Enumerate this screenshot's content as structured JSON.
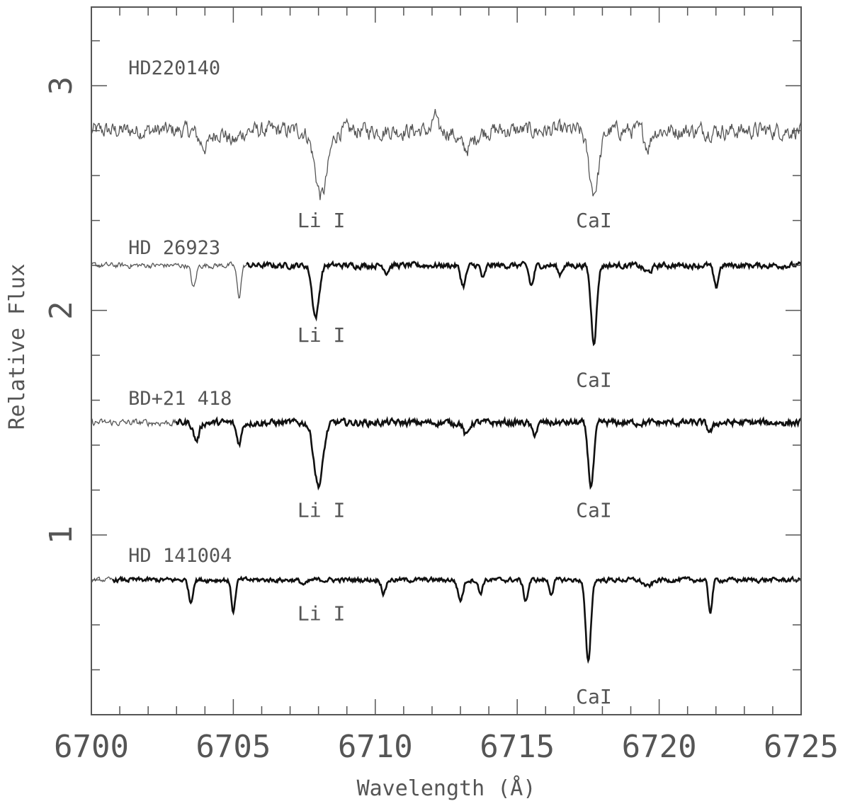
{
  "chart_data": {
    "type": "line",
    "xlabel": "Wavelength (Å)",
    "ylabel": "Relative Flux",
    "xlim": [
      6700,
      6725
    ],
    "ylim": [
      0.2,
      3.35
    ],
    "x_ticks": [
      6700,
      6705,
      6710,
      6715,
      6720,
      6725
    ],
    "y_ticks": [
      1,
      2,
      3
    ],
    "x_minor_step": 1,
    "y_minor_step": 0.2,
    "grid": false,
    "series": [
      {
        "name": "HD220140",
        "continuum": 2.8,
        "noise": 0.03,
        "thin_until": 6725,
        "label_pos": [
          6701.0,
          3.05
        ],
        "lines": [
          {
            "center": 6704.0,
            "depth": 0.07,
            "width": 0.2
          },
          {
            "center": 6705.0,
            "depth": 0.05,
            "width": 0.2
          },
          {
            "center": 6708.1,
            "depth": 0.29,
            "width": 0.22
          },
          {
            "center": 6713.2,
            "depth": 0.08,
            "width": 0.25
          },
          {
            "center": 6717.7,
            "depth": 0.27,
            "width": 0.18
          },
          {
            "center": 6719.6,
            "depth": 0.07,
            "width": 0.1
          },
          {
            "center": 6712.1,
            "depth": -0.08,
            "width": 0.05
          }
        ],
        "annotations": [
          {
            "text": "Li I",
            "x": 6708.1,
            "y": 2.37
          },
          {
            "text": "CaI",
            "x": 6717.7,
            "y": 2.37
          }
        ]
      },
      {
        "name": "HD 26923",
        "continuum": 2.2,
        "noise": 0.01,
        "thin_until": 6705.5,
        "label_pos": [
          6701.0,
          2.25
        ],
        "lines": [
          {
            "center": 6703.6,
            "depth": 0.1,
            "width": 0.08
          },
          {
            "center": 6705.2,
            "depth": 0.14,
            "width": 0.07
          },
          {
            "center": 6707.9,
            "depth": 0.23,
            "width": 0.12
          },
          {
            "center": 6710.4,
            "depth": 0.03,
            "width": 0.07
          },
          {
            "center": 6713.1,
            "depth": 0.09,
            "width": 0.09
          },
          {
            "center": 6713.8,
            "depth": 0.06,
            "width": 0.07
          },
          {
            "center": 6715.5,
            "depth": 0.09,
            "width": 0.08
          },
          {
            "center": 6716.5,
            "depth": 0.04,
            "width": 0.07
          },
          {
            "center": 6717.7,
            "depth": 0.34,
            "width": 0.1
          },
          {
            "center": 6719.6,
            "depth": 0.03,
            "width": 0.15
          },
          {
            "center": 6722.0,
            "depth": 0.1,
            "width": 0.08
          }
        ],
        "annotations": [
          {
            "text": "Li I",
            "x": 6708.1,
            "y": 1.86
          },
          {
            "text": "CaI",
            "x": 6717.7,
            "y": 1.66
          }
        ]
      },
      {
        "name": "BD+21 418",
        "continuum": 1.5,
        "noise": 0.012,
        "thin_until": 6703.0,
        "label_pos": [
          6701.0,
          1.58
        ],
        "lines": [
          {
            "center": 6703.7,
            "depth": 0.08,
            "width": 0.1
          },
          {
            "center": 6705.2,
            "depth": 0.09,
            "width": 0.09
          },
          {
            "center": 6708.0,
            "depth": 0.28,
            "width": 0.16
          },
          {
            "center": 6713.2,
            "depth": 0.06,
            "width": 0.09
          },
          {
            "center": 6715.6,
            "depth": 0.05,
            "width": 0.1
          },
          {
            "center": 6717.6,
            "depth": 0.28,
            "width": 0.1
          },
          {
            "center": 6721.8,
            "depth": 0.04,
            "width": 0.1
          }
        ],
        "annotations": [
          {
            "text": "Li I",
            "x": 6708.1,
            "y": 1.08
          },
          {
            "text": "CaI",
            "x": 6717.7,
            "y": 1.08
          }
        ]
      },
      {
        "name": "HD 141004",
        "continuum": 0.8,
        "noise": 0.008,
        "thin_until": 6700.8,
        "label_pos": [
          6701.0,
          0.88
        ],
        "lines": [
          {
            "center": 6703.5,
            "depth": 0.1,
            "width": 0.07
          },
          {
            "center": 6705.0,
            "depth": 0.14,
            "width": 0.07
          },
          {
            "center": 6707.5,
            "depth": 0.02,
            "width": 0.12
          },
          {
            "center": 6710.3,
            "depth": 0.06,
            "width": 0.07
          },
          {
            "center": 6713.0,
            "depth": 0.09,
            "width": 0.09
          },
          {
            "center": 6713.7,
            "depth": 0.06,
            "width": 0.07
          },
          {
            "center": 6715.3,
            "depth": 0.09,
            "width": 0.08
          },
          {
            "center": 6716.2,
            "depth": 0.06,
            "width": 0.07
          },
          {
            "center": 6717.5,
            "depth": 0.37,
            "width": 0.09
          },
          {
            "center": 6719.6,
            "depth": 0.03,
            "width": 0.15
          },
          {
            "center": 6721.8,
            "depth": 0.14,
            "width": 0.07
          }
        ],
        "annotations": [
          {
            "text": "Li I",
            "x": 6708.1,
            "y": 0.62
          },
          {
            "text": "CaI",
            "x": 6717.7,
            "y": 0.25
          }
        ]
      }
    ]
  }
}
